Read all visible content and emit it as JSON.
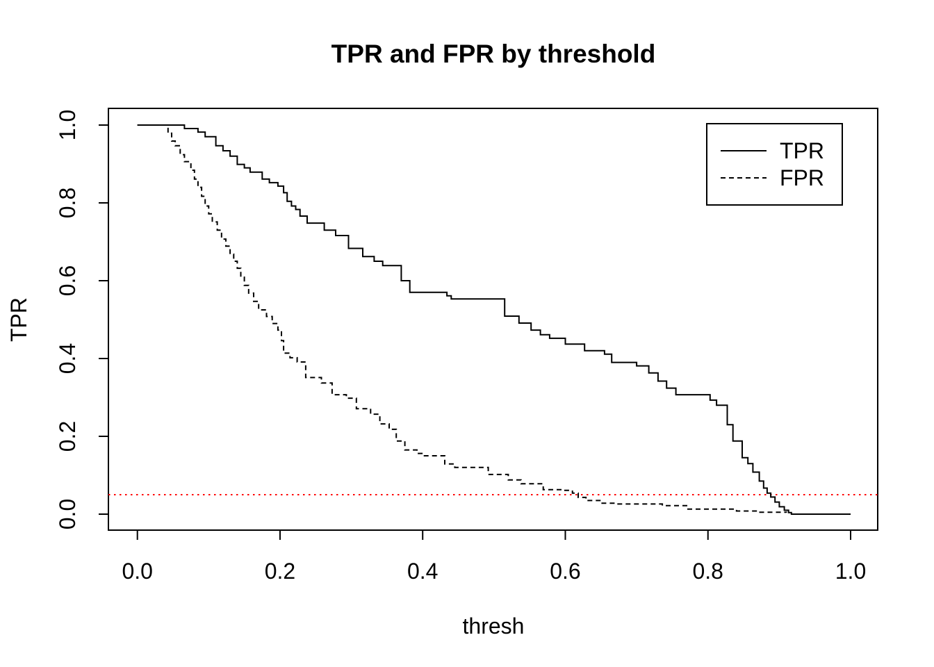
{
  "page": {
    "background": "#ffffff",
    "foreground": "#000000"
  },
  "chart_data": {
    "type": "line",
    "title": "TPR and FPR by threshold",
    "xlabel": "thresh",
    "ylabel": "TPR",
    "xlim": [
      0,
      1
    ],
    "ylim": [
      0,
      1
    ],
    "grid": false,
    "x_ticks": [
      {
        "value": 0.0,
        "label": "0.0"
      },
      {
        "value": 0.2,
        "label": "0.2"
      },
      {
        "value": 0.4,
        "label": "0.4"
      },
      {
        "value": 0.6,
        "label": "0.6"
      },
      {
        "value": 0.8,
        "label": "0.8"
      },
      {
        "value": 1.0,
        "label": "1.0"
      }
    ],
    "y_ticks": [
      {
        "value": 0.0,
        "label": "0.0"
      },
      {
        "value": 0.2,
        "label": "0.2"
      },
      {
        "value": 0.4,
        "label": "0.4"
      },
      {
        "value": 0.6,
        "label": "0.6"
      },
      {
        "value": 0.8,
        "label": "0.8"
      },
      {
        "value": 1.0,
        "label": "1.0"
      }
    ],
    "legend": {
      "position": "top-right",
      "entries": [
        {
          "label": "TPR",
          "line": "solid",
          "color": "#000000"
        },
        {
          "label": "FPR",
          "line": "dashed",
          "color": "#000000"
        }
      ]
    },
    "ref_line": {
      "axis": "y",
      "value": 0.05,
      "color": "#FF0000",
      "line": "dotted"
    },
    "series": [
      {
        "name": "TPR",
        "line": "solid",
        "color": "#000000",
        "step": true,
        "points": [
          [
            0.0,
            1.0
          ],
          [
            0.066,
            0.991
          ],
          [
            0.085,
            0.982
          ],
          [
            0.095,
            0.97
          ],
          [
            0.11,
            0.947
          ],
          [
            0.12,
            0.934
          ],
          [
            0.13,
            0.92
          ],
          [
            0.14,
            0.899
          ],
          [
            0.15,
            0.89
          ],
          [
            0.158,
            0.879
          ],
          [
            0.175,
            0.861
          ],
          [
            0.185,
            0.852
          ],
          [
            0.197,
            0.843
          ],
          [
            0.205,
            0.826
          ],
          [
            0.21,
            0.804
          ],
          [
            0.216,
            0.792
          ],
          [
            0.222,
            0.783
          ],
          [
            0.228,
            0.766
          ],
          [
            0.238,
            0.748
          ],
          [
            0.262,
            0.73
          ],
          [
            0.278,
            0.716
          ],
          [
            0.296,
            0.683
          ],
          [
            0.316,
            0.662
          ],
          [
            0.332,
            0.65
          ],
          [
            0.344,
            0.639
          ],
          [
            0.37,
            0.6
          ],
          [
            0.382,
            0.57
          ],
          [
            0.434,
            0.561
          ],
          [
            0.44,
            0.553
          ],
          [
            0.515,
            0.509
          ],
          [
            0.535,
            0.491
          ],
          [
            0.552,
            0.473
          ],
          [
            0.565,
            0.461
          ],
          [
            0.578,
            0.452
          ],
          [
            0.6,
            0.437
          ],
          [
            0.627,
            0.42
          ],
          [
            0.655,
            0.411
          ],
          [
            0.665,
            0.39
          ],
          [
            0.7,
            0.381
          ],
          [
            0.717,
            0.363
          ],
          [
            0.73,
            0.342
          ],
          [
            0.742,
            0.324
          ],
          [
            0.755,
            0.307
          ],
          [
            0.803,
            0.293
          ],
          [
            0.812,
            0.28
          ],
          [
            0.827,
            0.23
          ],
          [
            0.835,
            0.188
          ],
          [
            0.848,
            0.145
          ],
          [
            0.856,
            0.13
          ],
          [
            0.863,
            0.108
          ],
          [
            0.872,
            0.085
          ],
          [
            0.878,
            0.067
          ],
          [
            0.883,
            0.054
          ],
          [
            0.888,
            0.044
          ],
          [
            0.894,
            0.031
          ],
          [
            0.9,
            0.019
          ],
          [
            0.907,
            0.01
          ],
          [
            0.913,
            0.004
          ],
          [
            0.917,
            0.0
          ],
          [
            1.0,
            0.0
          ]
        ]
      },
      {
        "name": "FPR",
        "line": "dashed",
        "color": "#000000",
        "step": true,
        "points": [
          [
            0.0,
            1.0
          ],
          [
            0.043,
            0.979
          ],
          [
            0.048,
            0.959
          ],
          [
            0.053,
            0.947
          ],
          [
            0.06,
            0.924
          ],
          [
            0.066,
            0.906
          ],
          [
            0.075,
            0.884
          ],
          [
            0.08,
            0.861
          ],
          [
            0.085,
            0.84
          ],
          [
            0.09,
            0.817
          ],
          [
            0.095,
            0.792
          ],
          [
            0.1,
            0.772
          ],
          [
            0.105,
            0.751
          ],
          [
            0.112,
            0.73
          ],
          [
            0.118,
            0.707
          ],
          [
            0.124,
            0.689
          ],
          [
            0.13,
            0.668
          ],
          [
            0.135,
            0.65
          ],
          [
            0.14,
            0.632
          ],
          [
            0.145,
            0.609
          ],
          [
            0.15,
            0.588
          ],
          [
            0.156,
            0.568
          ],
          [
            0.163,
            0.547
          ],
          [
            0.17,
            0.525
          ],
          [
            0.181,
            0.508
          ],
          [
            0.189,
            0.49
          ],
          [
            0.197,
            0.473
          ],
          [
            0.202,
            0.446
          ],
          [
            0.205,
            0.414
          ],
          [
            0.214,
            0.402
          ],
          [
            0.224,
            0.391
          ],
          [
            0.236,
            0.351
          ],
          [
            0.258,
            0.337
          ],
          [
            0.273,
            0.307
          ],
          [
            0.293,
            0.298
          ],
          [
            0.307,
            0.271
          ],
          [
            0.327,
            0.257
          ],
          [
            0.34,
            0.232
          ],
          [
            0.353,
            0.218
          ],
          [
            0.363,
            0.188
          ],
          [
            0.375,
            0.165
          ],
          [
            0.392,
            0.156
          ],
          [
            0.4,
            0.15
          ],
          [
            0.431,
            0.129
          ],
          [
            0.445,
            0.12
          ],
          [
            0.492,
            0.102
          ],
          [
            0.52,
            0.088
          ],
          [
            0.538,
            0.078
          ],
          [
            0.569,
            0.063
          ],
          [
            0.596,
            0.061
          ],
          [
            0.61,
            0.054
          ],
          [
            0.618,
            0.043
          ],
          [
            0.629,
            0.035
          ],
          [
            0.65,
            0.028
          ],
          [
            0.671,
            0.026
          ],
          [
            0.736,
            0.022
          ],
          [
            0.77,
            0.013
          ],
          [
            0.84,
            0.008
          ],
          [
            0.87,
            0.005
          ],
          [
            0.91,
            0.004
          ]
        ]
      }
    ]
  }
}
